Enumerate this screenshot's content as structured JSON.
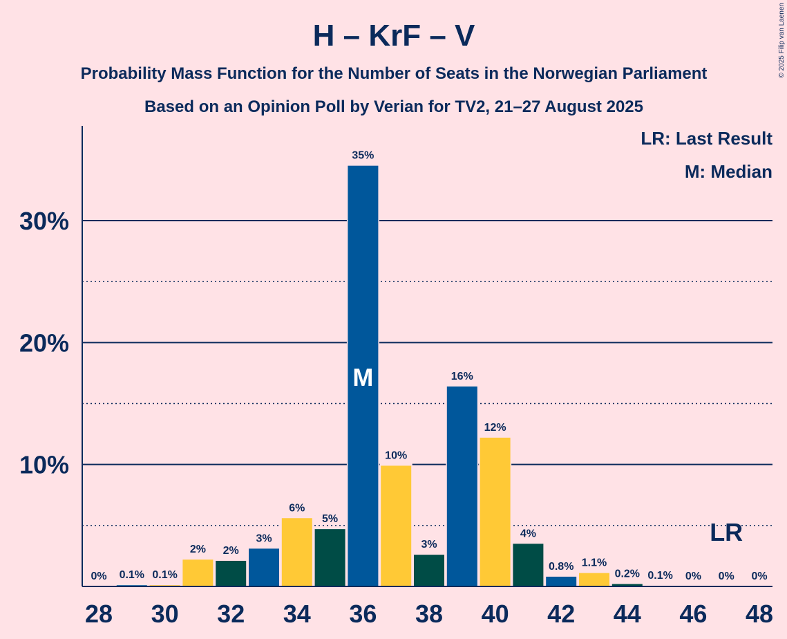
{
  "copyright": "© 2025 Filip van Laenen",
  "chart_data": {
    "type": "bar",
    "title": "H – KrF – V",
    "subtitle1": "Probability Mass Function for the Number of Seats in the Norwegian Parliament",
    "subtitle2": "Based on an Opinion Poll by Verian for TV2, 21–27 August 2025",
    "legend": [
      "LR: Last Result",
      "M: Median"
    ],
    "ylim": [
      0,
      38
    ],
    "y_major_ticks": [
      10,
      20,
      30
    ],
    "y_tick_labels": [
      "10%",
      "20%",
      "30%"
    ],
    "y_minor_gridlines": [
      5,
      15,
      25
    ],
    "x_tick_labels": [
      "28",
      "30",
      "32",
      "34",
      "36",
      "38",
      "40",
      "42",
      "44",
      "46",
      "48"
    ],
    "median_seat": 36,
    "median_label": "M",
    "last_result_seat": 47,
    "last_result_label": "LR",
    "colors": {
      "blue": "#00579B",
      "yellow": "#FFC936",
      "green": "#004C46",
      "text": "#0B2A5B",
      "background": "#FFE2E6"
    },
    "bars": [
      {
        "seats": 28,
        "value": 0,
        "label": "0%",
        "color": "blue"
      },
      {
        "seats": 29,
        "value": 0.1,
        "label": "0.1%",
        "color": "blue"
      },
      {
        "seats": 30,
        "value": 0.1,
        "label": "0.1%",
        "color": "yellow"
      },
      {
        "seats": 31,
        "value": 2.2,
        "label": "2%",
        "color": "yellow"
      },
      {
        "seats": 32,
        "value": 2.1,
        "label": "2%",
        "color": "green"
      },
      {
        "seats": 33,
        "value": 3.1,
        "label": "3%",
        "color": "blue"
      },
      {
        "seats": 34,
        "value": 5.6,
        "label": "6%",
        "color": "yellow"
      },
      {
        "seats": 35,
        "value": 4.7,
        "label": "5%",
        "color": "green"
      },
      {
        "seats": 36,
        "value": 34.5,
        "label": "35%",
        "color": "blue"
      },
      {
        "seats": 37,
        "value": 9.9,
        "label": "10%",
        "color": "yellow"
      },
      {
        "seats": 38,
        "value": 2.6,
        "label": "3%",
        "color": "green"
      },
      {
        "seats": 39,
        "value": 16.4,
        "label": "16%",
        "color": "blue"
      },
      {
        "seats": 40,
        "value": 12.2,
        "label": "12%",
        "color": "yellow"
      },
      {
        "seats": 41,
        "value": 3.5,
        "label": "4%",
        "color": "green"
      },
      {
        "seats": 42,
        "value": 0.8,
        "label": "0.8%",
        "color": "blue"
      },
      {
        "seats": 43,
        "value": 1.1,
        "label": "1.1%",
        "color": "yellow"
      },
      {
        "seats": 44,
        "value": 0.2,
        "label": "0.2%",
        "color": "green"
      },
      {
        "seats": 45,
        "value": 0.05,
        "label": "0.1%",
        "color": "blue"
      },
      {
        "seats": 46,
        "value": 0,
        "label": "0%",
        "color": "yellow"
      },
      {
        "seats": 47,
        "value": 0,
        "label": "0%",
        "color": "green"
      },
      {
        "seats": 48,
        "value": 0,
        "label": "0%",
        "color": "blue"
      }
    ]
  }
}
